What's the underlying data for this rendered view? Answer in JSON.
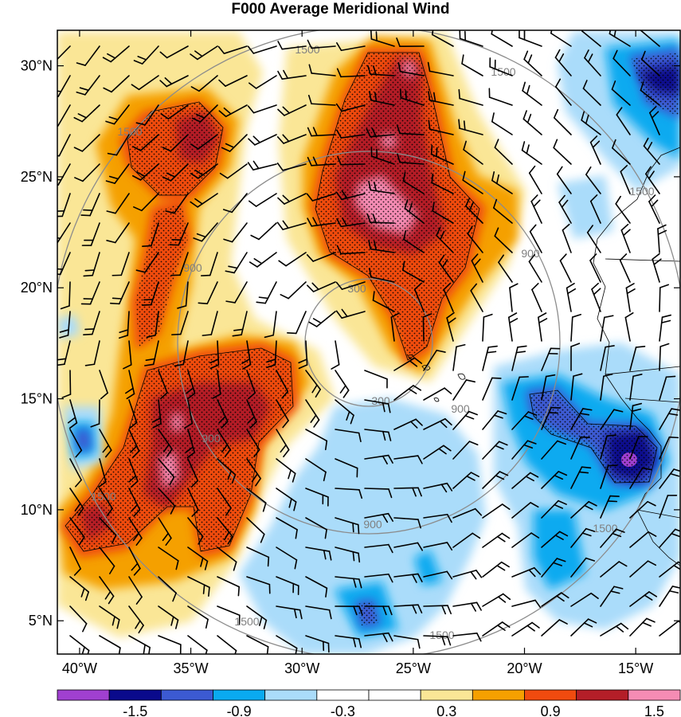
{
  "title": "F000 Average Meridional Wind",
  "map": {
    "lat_ticks": [
      {
        "value": 5,
        "label": "5°N"
      },
      {
        "value": 10,
        "label": "10°N"
      },
      {
        "value": 15,
        "label": "15°N"
      },
      {
        "value": 20,
        "label": "20°N"
      },
      {
        "value": 25,
        "label": "25°N"
      },
      {
        "value": 30,
        "label": "30°N"
      }
    ],
    "lon_ticks": [
      {
        "value": -40,
        "label": "40°W"
      },
      {
        "value": -35,
        "label": "35°W"
      },
      {
        "value": -30,
        "label": "30°W"
      },
      {
        "value": -25,
        "label": "25°W"
      },
      {
        "value": -20,
        "label": "20°W"
      },
      {
        "value": -15,
        "label": "15°W"
      }
    ],
    "lon_range": [
      -41,
      -13
    ],
    "lat_range": [
      3.5,
      31.6
    ],
    "range_rings": [
      {
        "value": 300,
        "label": "300"
      },
      {
        "value": 900,
        "label": "900"
      },
      {
        "value": 1500,
        "label": "1500"
      }
    ],
    "ring_color": "#8c8c8c"
  },
  "colorbar": {
    "colors": [
      "#a040d0",
      "#0a0a8c",
      "#3c5ad2",
      "#0aaaf0",
      "#aadcfa",
      "#ffffff",
      "#ffffff",
      "#fae696",
      "#f5a000",
      "#f04b0f",
      "#b41e28",
      "#f58cb4"
    ],
    "labels": [
      {
        "index": 2,
        "text": "-1.5"
      },
      {
        "index": 4,
        "text": "-0.9"
      },
      {
        "index": 6,
        "text": "-0.3"
      },
      {
        "index": 8,
        "text": "0.3"
      },
      {
        "index": 10,
        "text": "0.9"
      },
      {
        "index": 12,
        "text": "1.5"
      }
    ]
  }
}
